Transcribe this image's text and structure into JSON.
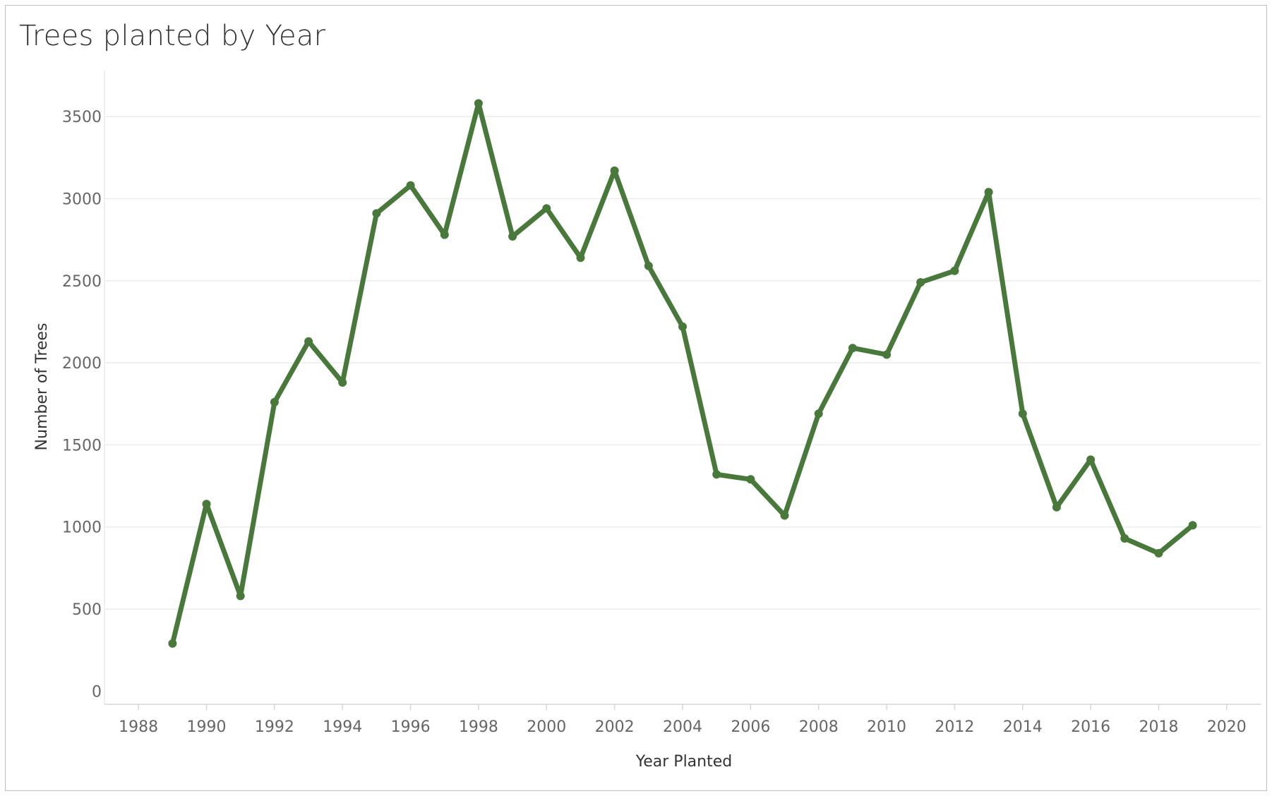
{
  "colors": {
    "line": "#48793a",
    "grid": "#ececec",
    "axis": "#d6d6d6"
  },
  "chart_data": {
    "type": "line",
    "title": "Trees planted by Year",
    "xlabel": "Year Planted",
    "ylabel": "Number of Trees",
    "xlim": [
      1987,
      2021
    ],
    "ylim": [
      -80,
      3780
    ],
    "x_ticks": [
      1988,
      1990,
      1992,
      1994,
      1996,
      1998,
      2000,
      2002,
      2004,
      2006,
      2008,
      2010,
      2012,
      2014,
      2016,
      2018,
      2020
    ],
    "y_ticks": [
      0,
      500,
      1000,
      1500,
      2000,
      2500,
      3000,
      3500
    ],
    "grid": true,
    "markers": true,
    "x": [
      1989,
      1990,
      1991,
      1992,
      1993,
      1994,
      1995,
      1996,
      1997,
      1998,
      1999,
      2000,
      2001,
      2002,
      2003,
      2004,
      2005,
      2006,
      2007,
      2008,
      2009,
      2010,
      2011,
      2012,
      2013,
      2014,
      2015,
      2016,
      2017,
      2018,
      2019
    ],
    "series": [
      {
        "values": [
          290,
          1140,
          580,
          1760,
          2130,
          1880,
          2910,
          3080,
          2780,
          3580,
          2770,
          2940,
          2640,
          3170,
          2590,
          2220,
          1320,
          1290,
          1070,
          1690,
          2090,
          2050,
          2490,
          2560,
          3040,
          1690,
          1120,
          1410,
          930,
          840,
          1010
        ]
      }
    ]
  }
}
